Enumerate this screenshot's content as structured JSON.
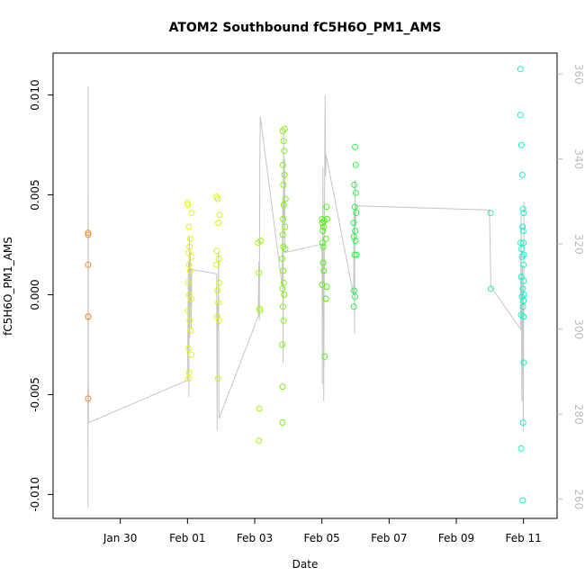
{
  "chart_data": {
    "type": "scatter",
    "title": "ATOM2 Southbound fC5H6O_PM1_AMS",
    "xlabel": "Date",
    "ylabel": "fC5H6O_PM1_AMS",
    "xlim": [
      "2016-01-28T00:00",
      "2016-02-12T00:00"
    ],
    "ylim": [
      -0.0112,
      0.0121
    ],
    "x_ticks": [
      {
        "label": "Jan 30",
        "value": "2016-01-30T00:00"
      },
      {
        "label": "Feb 01",
        "value": "2016-02-01T00:00"
      },
      {
        "label": "Feb 03",
        "value": "2016-02-03T00:00"
      },
      {
        "label": "Feb 05",
        "value": "2016-02-05T00:00"
      },
      {
        "label": "Feb 07",
        "value": "2016-02-07T00:00"
      },
      {
        "label": "Feb 09",
        "value": "2016-02-09T00:00"
      },
      {
        "label": "Feb 11",
        "value": "2016-02-11T00:00"
      }
    ],
    "y_ticks": [
      {
        "label": "-0.010",
        "value": -0.01
      },
      {
        "label": "-0.005",
        "value": -0.005
      },
      {
        "label": "0.000",
        "value": 0.0
      },
      {
        "label": "0.005",
        "value": 0.005
      },
      {
        "label": "0.010",
        "value": 0.01
      }
    ],
    "y2_ticks": [
      {
        "label": "260",
        "value": 260
      },
      {
        "label": "280",
        "value": 280
      },
      {
        "label": "300",
        "value": 300
      },
      {
        "label": "320",
        "value": 320
      },
      {
        "label": "340",
        "value": 340
      },
      {
        "label": "360",
        "value": 360
      }
    ],
    "y2lim": [
      255.5,
      364.9
    ],
    "grid": false,
    "legend": "none",
    "point_color_scale": [
      "#f58a2f",
      "#f6f511",
      "#6df511",
      "#12f5b8"
    ],
    "series": [
      {
        "color": "#f5892e",
        "points": [
          {
            "x": "2016-01-29T01:02",
            "y": 0.0031
          },
          {
            "x": "2016-01-29T01:02",
            "y": 0.003
          },
          {
            "x": "2016-01-29T01:02",
            "y": 0.0015
          },
          {
            "x": "2016-01-29T01:02",
            "y": -0.0011
          },
          {
            "x": "2016-01-29T01:02",
            "y": -0.0011
          },
          {
            "x": "2016-01-29T01:02",
            "y": -0.0052
          }
        ]
      },
      {
        "color": "#e8f513",
        "points": [
          {
            "x": "2016-02-01T00:10",
            "y": 0.0046
          },
          {
            "x": "2016-02-01T00:20",
            "y": 0.0045
          },
          {
            "x": "2016-02-01T03:00",
            "y": 0.0041
          },
          {
            "x": "2016-02-01T01:00",
            "y": 0.0034
          },
          {
            "x": "2016-02-01T02:00",
            "y": 0.0028
          },
          {
            "x": "2016-02-01T01:30",
            "y": 0.0024
          },
          {
            "x": "2016-02-01T00:40",
            "y": 0.0021
          },
          {
            "x": "2016-02-01T03:00",
            "y": 0.0019
          },
          {
            "x": "2016-02-01T01:00",
            "y": 0.0015
          },
          {
            "x": "2016-02-01T02:00",
            "y": 0.0012
          },
          {
            "x": "2016-02-01T00:30",
            "y": 0.0006
          },
          {
            "x": "2016-02-01T01:20",
            "y": 0.0
          },
          {
            "x": "2016-02-01T02:40",
            "y": -0.0002
          },
          {
            "x": "2016-02-01T00:20",
            "y": -0.0008
          },
          {
            "x": "2016-02-01T01:40",
            "y": -0.0013
          },
          {
            "x": "2016-02-01T02:10",
            "y": -0.0018
          },
          {
            "x": "2016-02-01T00:50",
            "y": -0.0027
          },
          {
            "x": "2016-02-01T02:50",
            "y": -0.003
          },
          {
            "x": "2016-02-01T01:10",
            "y": -0.0039
          },
          {
            "x": "2016-02-01T00:40",
            "y": -0.0042
          }
        ]
      },
      {
        "color": "#d8f514",
        "points": [
          {
            "x": "2016-02-01T20:40",
            "y": 0.0049
          },
          {
            "x": "2016-02-01T21:40",
            "y": 0.0048
          },
          {
            "x": "2016-02-01T22:50",
            "y": 0.004
          },
          {
            "x": "2016-02-01T22:00",
            "y": 0.0036
          },
          {
            "x": "2016-02-01T21:00",
            "y": 0.0022
          },
          {
            "x": "2016-02-01T22:20",
            "y": 0.0018
          },
          {
            "x": "2016-02-01T20:50",
            "y": 0.0015
          },
          {
            "x": "2016-02-01T22:40",
            "y": 0.0006
          },
          {
            "x": "2016-02-01T21:20",
            "y": 0.0002
          },
          {
            "x": "2016-02-01T22:00",
            "y": -0.0004
          },
          {
            "x": "2016-02-01T21:10",
            "y": -0.0011
          },
          {
            "x": "2016-02-01T22:30",
            "y": -0.0013
          },
          {
            "x": "2016-02-01T21:50",
            "y": -0.0042
          }
        ]
      },
      {
        "color": "#a5f512",
        "points": [
          {
            "x": "2016-02-03T02:30",
            "y": 0.0026
          },
          {
            "x": "2016-02-03T04:20",
            "y": 0.0027
          },
          {
            "x": "2016-02-03T03:00",
            "y": 0.0011
          },
          {
            "x": "2016-02-03T03:30",
            "y": -0.0007
          },
          {
            "x": "2016-02-03T03:50",
            "y": -0.0008
          },
          {
            "x": "2016-02-03T03:20",
            "y": -0.0057
          },
          {
            "x": "2016-02-03T03:00",
            "y": -0.0073
          }
        ]
      },
      {
        "color": "#7ff511",
        "points": [
          {
            "x": "2016-02-03T20:00",
            "y": 0.0082
          },
          {
            "x": "2016-02-03T21:30",
            "y": 0.0083
          },
          {
            "x": "2016-02-03T20:40",
            "y": 0.0077
          },
          {
            "x": "2016-02-03T21:00",
            "y": 0.0072
          },
          {
            "x": "2016-02-03T20:10",
            "y": 0.0065
          },
          {
            "x": "2016-02-03T21:20",
            "y": 0.006
          },
          {
            "x": "2016-02-03T20:30",
            "y": 0.0055
          },
          {
            "x": "2016-02-03T22:00",
            "y": 0.0048
          },
          {
            "x": "2016-02-03T20:50",
            "y": 0.0045
          },
          {
            "x": "2016-02-03T20:20",
            "y": 0.0038
          },
          {
            "x": "2016-02-03T21:40",
            "y": 0.0034
          },
          {
            "x": "2016-02-03T20:00",
            "y": 0.003
          },
          {
            "x": "2016-02-03T20:30",
            "y": 0.0024
          },
          {
            "x": "2016-02-03T21:50",
            "y": 0.0023
          },
          {
            "x": "2016-02-03T19:40",
            "y": 0.0018
          },
          {
            "x": "2016-02-03T20:20",
            "y": 0.0012
          },
          {
            "x": "2016-02-03T20:50",
            "y": 0.0006
          },
          {
            "x": "2016-02-03T19:50",
            "y": 0.0003
          },
          {
            "x": "2016-02-03T21:00",
            "y": 0.0
          },
          {
            "x": "2016-02-03T20:10",
            "y": -0.0006
          },
          {
            "x": "2016-02-03T20:40",
            "y": -0.0013
          },
          {
            "x": "2016-02-03T19:40",
            "y": -0.0025
          },
          {
            "x": "2016-02-03T20:00",
            "y": -0.0046
          },
          {
            "x": "2016-02-03T19:50",
            "y": -0.0064
          }
        ]
      },
      {
        "color": "#52f514",
        "points": [
          {
            "x": "2016-02-05T00:10",
            "y": 0.0038
          },
          {
            "x": "2016-02-05T01:30",
            "y": 0.0037
          },
          {
            "x": "2016-02-05T00:20",
            "y": 0.0036
          },
          {
            "x": "2016-02-05T01:10",
            "y": 0.0034
          },
          {
            "x": "2016-02-05T00:40",
            "y": 0.0032
          },
          {
            "x": "2016-02-05T03:20",
            "y": 0.0044
          },
          {
            "x": "2016-02-05T03:40",
            "y": 0.0038
          },
          {
            "x": "2016-02-05T00:30",
            "y": 0.0026
          },
          {
            "x": "2016-02-05T01:00",
            "y": 0.0024
          },
          {
            "x": "2016-02-05T03:00",
            "y": 0.0028
          },
          {
            "x": "2016-02-05T00:50",
            "y": 0.0016
          },
          {
            "x": "2016-02-05T01:20",
            "y": 0.0012
          },
          {
            "x": "2016-02-05T00:10",
            "y": 0.0005
          },
          {
            "x": "2016-02-05T03:30",
            "y": 0.0004
          },
          {
            "x": "2016-02-05T02:50",
            "y": -0.0002
          },
          {
            "x": "2016-02-05T02:00",
            "y": -0.0031
          }
        ]
      },
      {
        "color": "#2cf54e",
        "points": [
          {
            "x": "2016-02-05T23:40",
            "y": 0.0074
          },
          {
            "x": "2016-02-06T00:10",
            "y": 0.0065
          },
          {
            "x": "2016-02-05T23:10",
            "y": 0.0055
          },
          {
            "x": "2016-02-06T00:20",
            "y": 0.0051
          },
          {
            "x": "2016-02-05T23:30",
            "y": 0.0044
          },
          {
            "x": "2016-02-06T00:30",
            "y": 0.0041
          },
          {
            "x": "2016-02-05T22:40",
            "y": 0.0036
          },
          {
            "x": "2016-02-05T23:50",
            "y": 0.0032
          },
          {
            "x": "2016-02-05T22:50",
            "y": 0.0029
          },
          {
            "x": "2016-02-06T00:00",
            "y": 0.0027
          },
          {
            "x": "2016-02-05T23:20",
            "y": 0.002
          },
          {
            "x": "2016-02-06T00:40",
            "y": 0.002
          },
          {
            "x": "2016-02-05T23:00",
            "y": 0.0002
          },
          {
            "x": "2016-02-05T23:40",
            "y": -0.0001
          },
          {
            "x": "2016-02-05T22:50",
            "y": -0.0006
          }
        ]
      },
      {
        "color": "#22f5a8",
        "points": [
          {
            "x": "2016-02-10T00:30",
            "y": 0.0041
          },
          {
            "x": "2016-02-10T00:40",
            "y": 0.0003
          }
        ]
      },
      {
        "color": "#14f5c8",
        "points": [
          {
            "x": "2016-02-10T21:50",
            "y": 0.0113
          },
          {
            "x": "2016-02-10T21:50",
            "y": 0.009
          },
          {
            "x": "2016-02-10T22:30",
            "y": 0.0075
          },
          {
            "x": "2016-02-10T23:10",
            "y": 0.006
          },
          {
            "x": "2016-02-10T23:40",
            "y": 0.0043
          },
          {
            "x": "2016-02-11T00:10",
            "y": 0.0041
          },
          {
            "x": "2016-02-10T23:20",
            "y": 0.0034
          },
          {
            "x": "2016-02-10T23:50",
            "y": 0.0032
          },
          {
            "x": "2016-02-11T00:00",
            "y": 0.0026
          },
          {
            "x": "2016-02-10T22:00",
            "y": 0.0026
          },
          {
            "x": "2016-02-10T22:40",
            "y": 0.0023
          },
          {
            "x": "2016-02-11T00:20",
            "y": 0.002
          },
          {
            "x": "2016-02-10T23:00",
            "y": 0.0019
          },
          {
            "x": "2016-02-11T00:00",
            "y": 0.0015
          },
          {
            "x": "2016-02-10T22:30",
            "y": 0.0009
          },
          {
            "x": "2016-02-11T00:10",
            "y": 0.0007
          },
          {
            "x": "2016-02-10T23:30",
            "y": 0.0003
          },
          {
            "x": "2016-02-11T00:20",
            "y": 0.0
          },
          {
            "x": "2016-02-10T22:50",
            "y": -0.0001
          },
          {
            "x": "2016-02-11T00:00",
            "y": -0.0003
          },
          {
            "x": "2016-02-10T23:40",
            "y": -0.0006
          },
          {
            "x": "2016-02-10T22:20",
            "y": -0.001
          },
          {
            "x": "2016-02-11T00:00",
            "y": -0.0011
          },
          {
            "x": "2016-02-11T00:10",
            "y": -0.0034
          },
          {
            "x": "2016-02-10T23:40",
            "y": -0.0064
          },
          {
            "x": "2016-02-10T22:20",
            "y": -0.0077
          },
          {
            "x": "2016-02-10T23:30",
            "y": -0.0103
          }
        ]
      }
    ],
    "secondary_line": {
      "color": "#c6c6c6",
      "points": [
        {
          "x": "2016-01-29T00:50",
          "y2": 287
        },
        {
          "x": "2016-01-29T00:58",
          "y2": 258
        },
        {
          "x": "2016-01-29T01:06",
          "y2": 357
        },
        {
          "x": "2016-01-29T01:14",
          "y2": 278
        },
        {
          "x": "2016-02-01T00:00",
          "y2": 288
        },
        {
          "x": "2016-02-01T00:40",
          "y2": 316
        },
        {
          "x": "2016-02-01T01:00",
          "y2": 284
        },
        {
          "x": "2016-02-01T01:20",
          "y2": 322
        },
        {
          "x": "2016-02-01T01:40",
          "y2": 298
        },
        {
          "x": "2016-02-01T02:00",
          "y2": 318
        },
        {
          "x": "2016-02-01T02:20",
          "y2": 310
        },
        {
          "x": "2016-02-01T02:40",
          "y2": 300
        },
        {
          "x": "2016-02-01T03:00",
          "y2": 314
        },
        {
          "x": "2016-02-01T20:50",
          "y2": 313
        },
        {
          "x": "2016-02-01T21:10",
          "y2": 276
        },
        {
          "x": "2016-02-01T21:30",
          "y2": 306
        },
        {
          "x": "2016-02-01T21:50",
          "y2": 300
        },
        {
          "x": "2016-02-01T22:10",
          "y2": 318
        },
        {
          "x": "2016-02-01T22:30",
          "y2": 279
        },
        {
          "x": "2016-02-03T02:30",
          "y2": 303
        },
        {
          "x": "2016-02-03T03:00",
          "y2": 316
        },
        {
          "x": "2016-02-03T03:20",
          "y2": 302
        },
        {
          "x": "2016-02-03T03:40",
          "y2": 340
        },
        {
          "x": "2016-02-03T04:00",
          "y2": 350
        },
        {
          "x": "2016-02-03T19:40",
          "y2": 310
        },
        {
          "x": "2016-02-03T20:00",
          "y2": 330
        },
        {
          "x": "2016-02-03T20:20",
          "y2": 292
        },
        {
          "x": "2016-02-03T20:40",
          "y2": 346
        },
        {
          "x": "2016-02-03T21:00",
          "y2": 326
        },
        {
          "x": "2016-02-03T21:20",
          "y2": 340
        },
        {
          "x": "2016-02-03T21:40",
          "y2": 318
        },
        {
          "x": "2016-02-05T00:00",
          "y2": 320
        },
        {
          "x": "2016-02-05T00:20",
          "y2": 287
        },
        {
          "x": "2016-02-05T00:40",
          "y2": 338
        },
        {
          "x": "2016-02-05T01:00",
          "y2": 320
        },
        {
          "x": "2016-02-05T01:20",
          "y2": 283
        },
        {
          "x": "2016-02-05T01:40",
          "y2": 312
        },
        {
          "x": "2016-02-05T02:00",
          "y2": 339
        },
        {
          "x": "2016-02-05T02:20",
          "y2": 355
        },
        {
          "x": "2016-02-05T02:40",
          "y2": 336
        },
        {
          "x": "2016-02-05T03:00",
          "y2": 341
        },
        {
          "x": "2016-02-05T22:40",
          "y2": 308
        },
        {
          "x": "2016-02-05T23:00",
          "y2": 328
        },
        {
          "x": "2016-02-05T23:20",
          "y2": 299
        },
        {
          "x": "2016-02-05T23:40",
          "y2": 335
        },
        {
          "x": "2016-02-06T00:00",
          "y2": 324
        },
        {
          "x": "2016-02-06T00:20",
          "y2": 329
        },
        {
          "x": "2016-02-09T23:40",
          "y2": 328
        },
        {
          "x": "2016-02-10T00:10",
          "y2": 320
        },
        {
          "x": "2016-02-10T00:40",
          "y2": 310
        },
        {
          "x": "2016-02-10T21:50",
          "y2": 300
        },
        {
          "x": "2016-02-10T22:20",
          "y2": 327
        },
        {
          "x": "2016-02-10T22:50",
          "y2": 283
        },
        {
          "x": "2016-02-10T23:20",
          "y2": 315
        },
        {
          "x": "2016-02-10T23:50",
          "y2": 276
        },
        {
          "x": "2016-02-11T00:20",
          "y2": 330
        }
      ]
    }
  }
}
